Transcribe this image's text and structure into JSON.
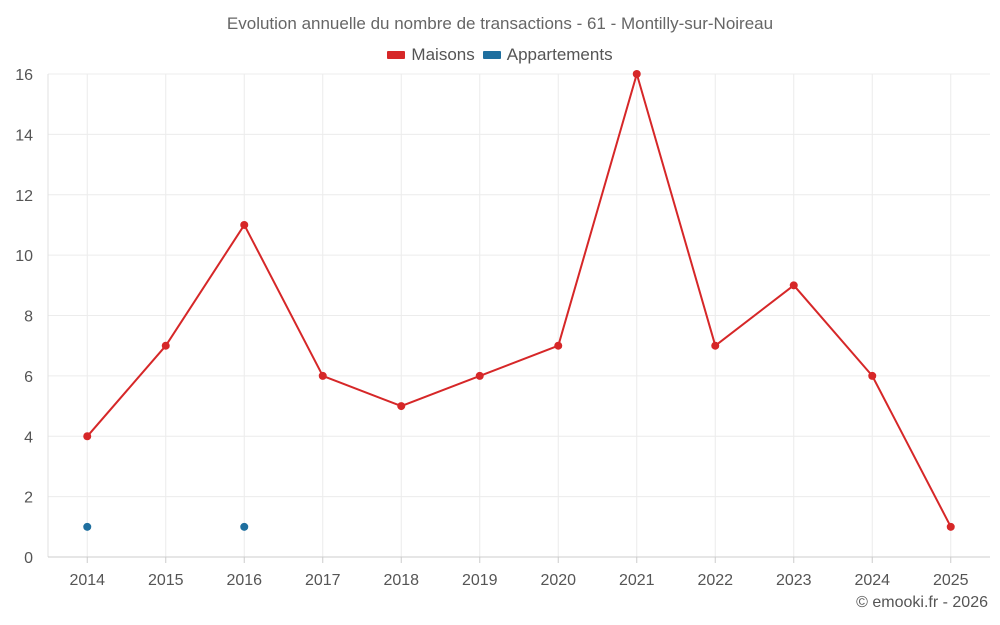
{
  "chart_data": {
    "type": "line",
    "title": "Evolution annuelle du nombre de transactions - 61 - Montilly-sur-Noireau",
    "xlabel": "",
    "ylabel": "",
    "categories": [
      "2014",
      "2015",
      "2016",
      "2017",
      "2018",
      "2019",
      "2020",
      "2021",
      "2022",
      "2023",
      "2024",
      "2025"
    ],
    "ylim": [
      0,
      16
    ],
    "yticks": [
      0,
      2,
      4,
      6,
      8,
      10,
      12,
      14,
      16
    ],
    "grid": true,
    "legend_position": "top-center",
    "series": [
      {
        "name": "Maisons",
        "color": "#d62728",
        "line": true,
        "values": [
          4,
          7,
          11,
          6,
          5,
          6,
          7,
          16,
          7,
          9,
          6,
          1
        ]
      },
      {
        "name": "Appartements",
        "color": "#1f6f9f",
        "line": false,
        "values": [
          1,
          null,
          1,
          null,
          null,
          null,
          null,
          null,
          null,
          null,
          null,
          null
        ]
      }
    ]
  },
  "credit": "© emooki.fr - 2026"
}
